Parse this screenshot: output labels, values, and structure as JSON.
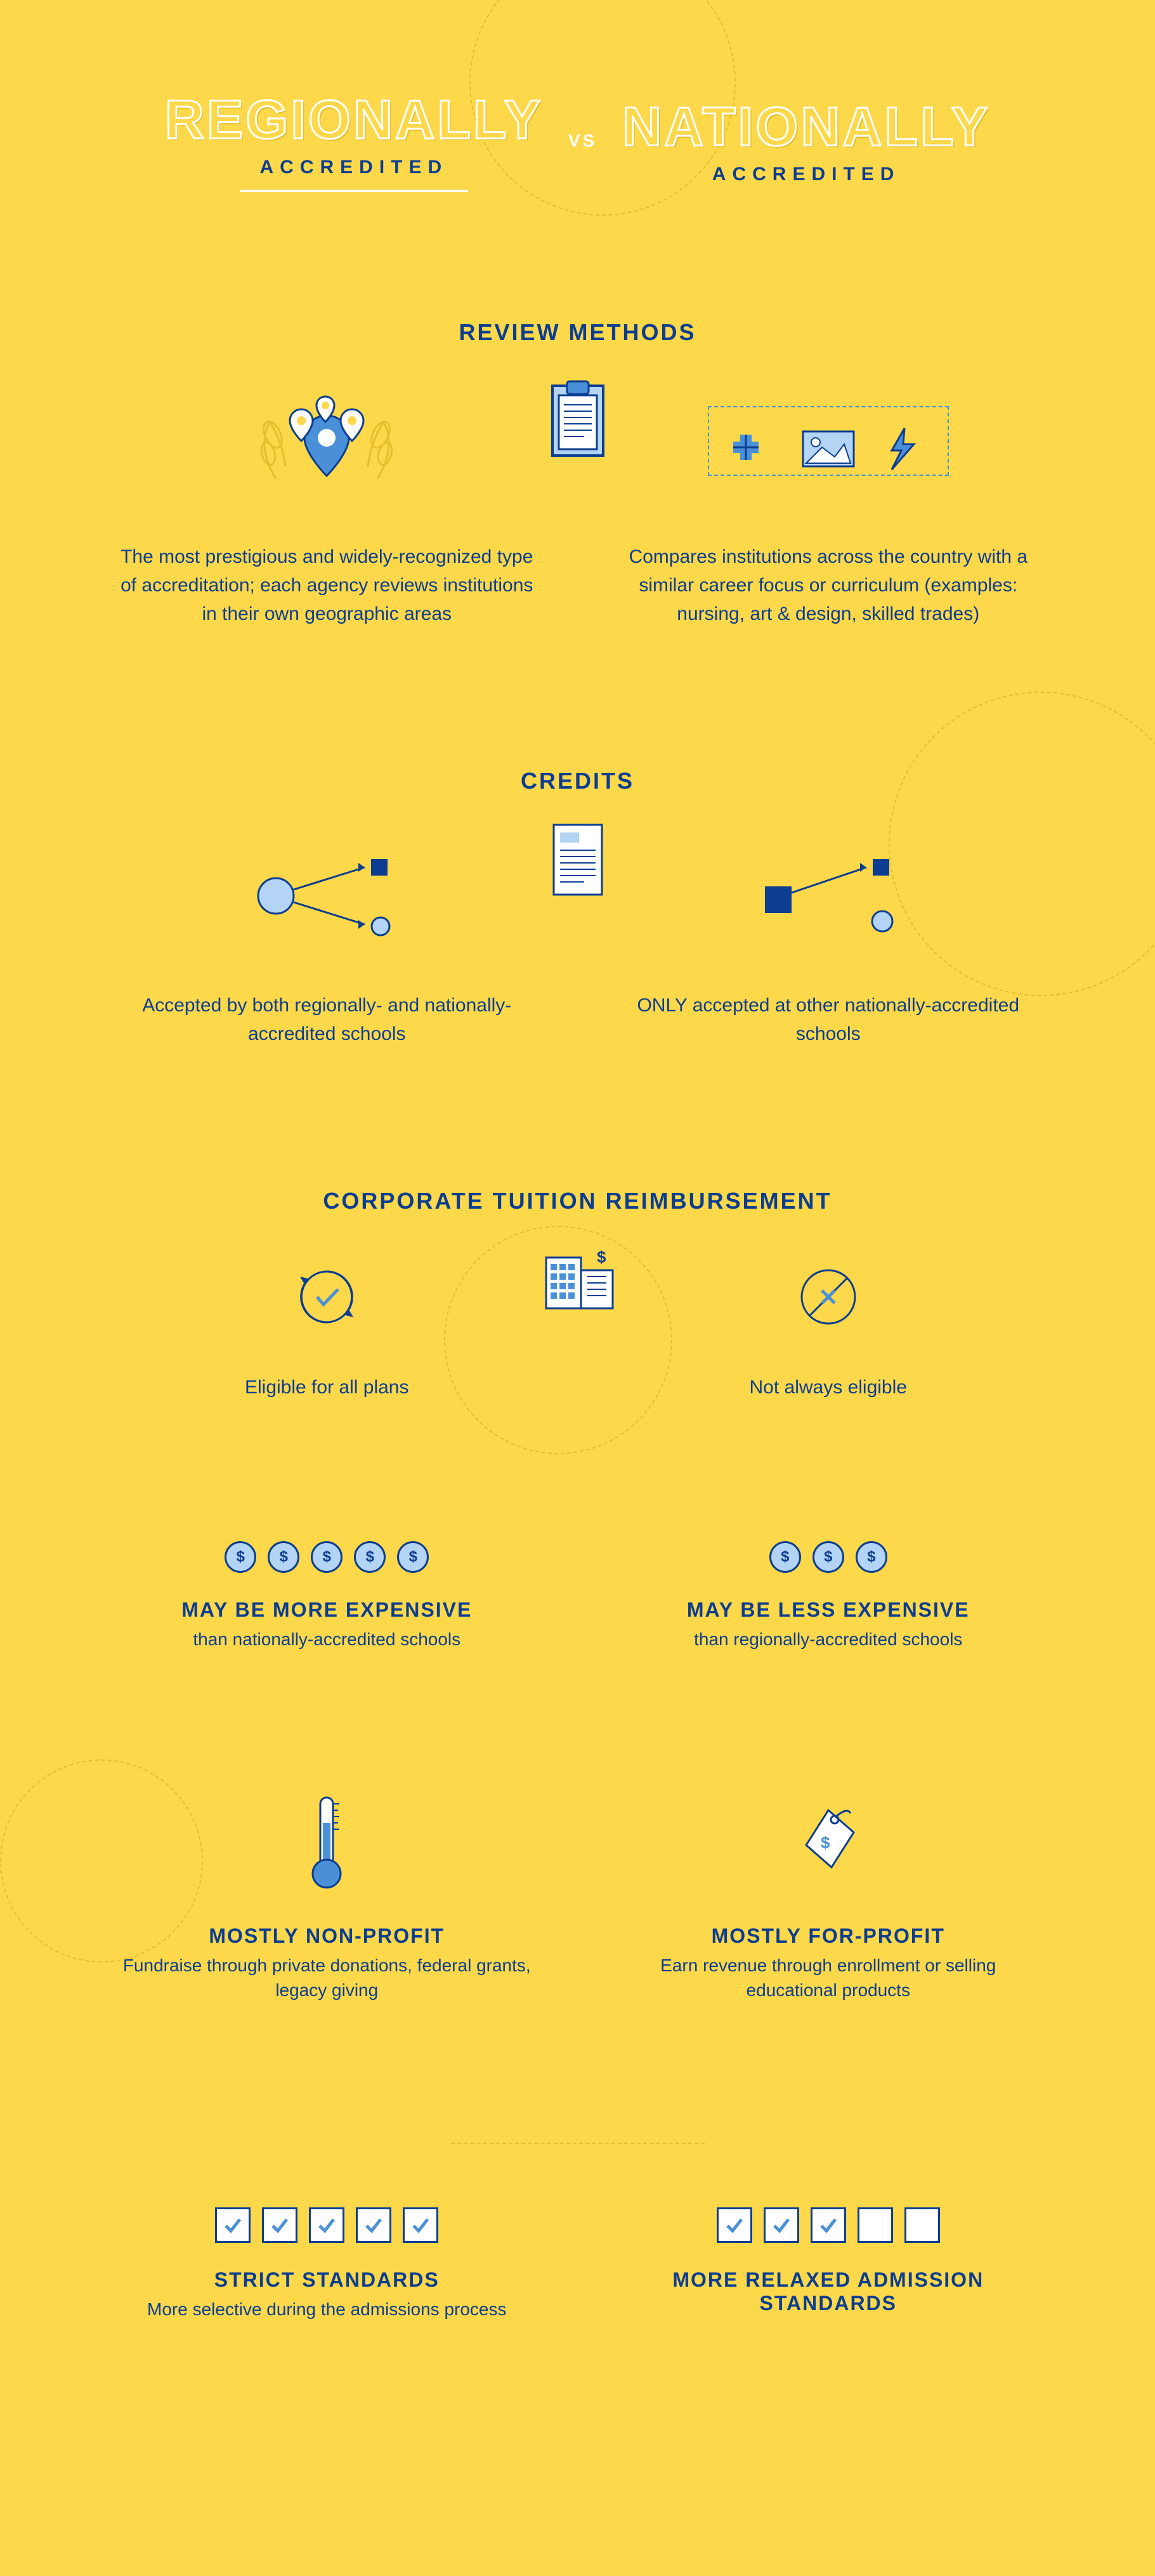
{
  "header": {
    "left_title": "REGIONALLY",
    "left_sub": "ACCREDITED",
    "vs": "VS",
    "right_title": "NATIONALLY",
    "right_sub": "ACCREDITED"
  },
  "sections": {
    "review": {
      "title": "REVIEW METHODS",
      "left": "The most prestigious and widely-recognized type of accreditation; each agency reviews institutions in their own geographic areas",
      "right": "Compares institutions across the country with a similar career focus or curriculum (examples: nursing, art & design, skilled trades)"
    },
    "credits": {
      "title": "CREDITS",
      "left": "Accepted by both regionally- and nationally-accredited schools",
      "right": "ONLY accepted at other nationally-accredited schools"
    },
    "reimbursement": {
      "title": "CORPORATE TUITION REIMBURSEMENT",
      "left": "Eligible for all plans",
      "right": "Not always eligible"
    },
    "expense": {
      "left_dollars": 5,
      "right_dollars": 3,
      "left_head": "MAY BE MORE EXPENSIVE",
      "left_sub": "than nationally-accredited schools",
      "right_head": "MAY BE LESS EXPENSIVE",
      "right_sub": "than regionally-accredited schools"
    },
    "profit": {
      "left_head": "MOSTLY NON-PROFIT",
      "left_sub": "Fundraise through private donations, federal grants, legacy giving",
      "right_head": "MOSTLY FOR-PROFIT",
      "right_sub": "Earn revenue through enrollment or selling educational products"
    },
    "standards": {
      "left_checks": 5,
      "left_total": 5,
      "right_checks": 3,
      "right_total": 5,
      "left_head": "STRICT STANDARDS",
      "left_sub": "More selective during the admissions process",
      "right_head": "MORE RELAXED ADMISSION STANDARDS",
      "right_sub": ""
    }
  },
  "colors": {
    "navy": "#0B3D91",
    "light_blue": "#B3D4F5",
    "mid_blue": "#4A90D9",
    "bg": "#FDD84A",
    "white": "#ffffff"
  }
}
